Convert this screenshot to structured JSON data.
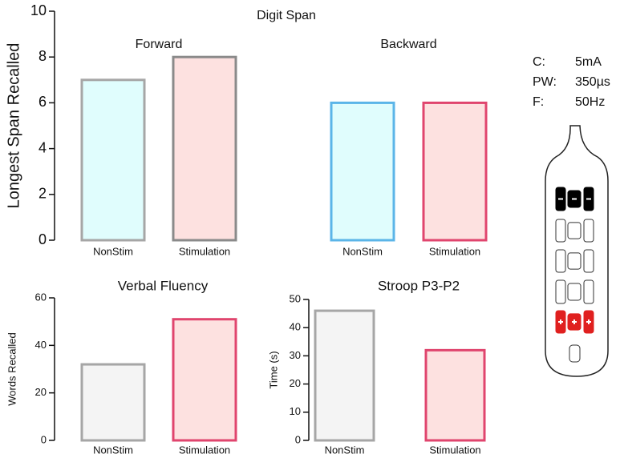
{
  "chart_data": [
    {
      "type": "bar",
      "title": "Digit Span",
      "y_label": "Longest Span Recalled",
      "ylim": [
        0,
        10
      ],
      "yticks": [
        0,
        2,
        4,
        6,
        8,
        10
      ],
      "panels": [
        {
          "title": "Forward",
          "categories": [
            "NonStim",
            "Stimulation"
          ],
          "values": [
            7,
            8
          ],
          "colors": [
            "#e0fdfd",
            "#fde1e0"
          ],
          "edge_colors": [
            "#a6a6a6",
            "#8a8a8a"
          ]
        },
        {
          "title": "Backward",
          "categories": [
            "NonStim",
            "Stimulation"
          ],
          "values": [
            6,
            6
          ],
          "colors": [
            "#e0fdfd",
            "#fde1e0"
          ],
          "edge_colors": [
            "#5bb5e8",
            "#e0456e"
          ]
        }
      ]
    },
    {
      "type": "bar",
      "title": "Verbal Fluency",
      "y_label": "Words Recalled",
      "ylim": [
        0,
        60
      ],
      "yticks": [
        0,
        20,
        40,
        60
      ],
      "panels": [
        {
          "categories": [
            "NonStim",
            "Stimulation"
          ],
          "values": [
            32,
            51
          ],
          "colors": [
            "#f4f4f4",
            "#fde1e0"
          ],
          "edge_colors": [
            "#a6a6a6",
            "#e0456e"
          ]
        }
      ]
    },
    {
      "type": "bar",
      "title": "Stroop P3-P2",
      "y_label": "Time (s)",
      "ylim": [
        0,
        50
      ],
      "yticks": [
        0,
        10,
        20,
        30,
        40,
        50
      ],
      "panels": [
        {
          "categories": [
            "NonStim",
            "Stimulation"
          ],
          "values": [
            46,
            32
          ],
          "colors": [
            "#f4f4f4",
            "#fde1e0"
          ],
          "edge_colors": [
            "#a6a6a6",
            "#e0456e"
          ]
        }
      ]
    }
  ],
  "stimulation_parameters": [
    {
      "label": "C:",
      "value": "5mA"
    },
    {
      "label": "PW:",
      "value": "350µs"
    },
    {
      "label": "F:",
      "value": "50Hz"
    }
  ]
}
